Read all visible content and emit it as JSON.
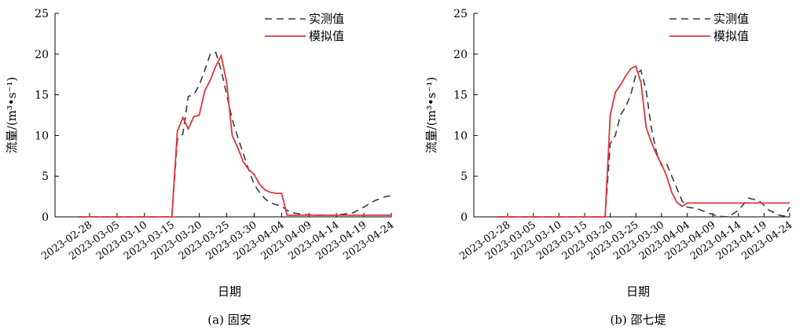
{
  "colors": {
    "observed": "#3a3a3a",
    "simulated": "#e0343a"
  },
  "chart_data": [
    {
      "type": "line",
      "caption": "(a) 固安",
      "xlabel": "日期",
      "ylabel": "流量/(m³•s⁻¹)",
      "ylim": [
        0,
        25
      ],
      "yticks": [
        0,
        5,
        10,
        15,
        20,
        25
      ],
      "xticks": [
        "2023-02-28",
        "2023-03-05",
        "2023-03-10",
        "2023-03-15",
        "2023-03-20",
        "2023-03-25",
        "2023-03-30",
        "2023-04-04",
        "2023-04-09",
        "2023-04-14",
        "2023-04-19",
        "2023-04-24"
      ],
      "x_start": "2023-02-26",
      "x_end": "2023-04-24",
      "legend": {
        "position": "top-right",
        "entries": [
          "实测值",
          "模拟值"
        ]
      },
      "series": [
        {
          "name": "实测值",
          "style": "dashed",
          "x": [
            "2023-02-26",
            "2023-03-15",
            "2023-03-16",
            "2023-03-17",
            "2023-03-18",
            "2023-03-19",
            "2023-03-20",
            "2023-03-21",
            "2023-03-22",
            "2023-03-23",
            "2023-03-24",
            "2023-03-25",
            "2023-03-26",
            "2023-03-27",
            "2023-03-28",
            "2023-03-29",
            "2023-03-30",
            "2023-03-31",
            "2023-04-01",
            "2023-04-02",
            "2023-04-03",
            "2023-04-04",
            "2023-04-05",
            "2023-04-06",
            "2023-04-08",
            "2023-04-10",
            "2023-04-14",
            "2023-04-17",
            "2023-04-19",
            "2023-04-21",
            "2023-04-23",
            "2023-04-24"
          ],
          "y": [
            0,
            0,
            9.5,
            10.2,
            14.8,
            15,
            16.2,
            18,
            20,
            20.2,
            18,
            15,
            12,
            9.8,
            7.8,
            5.8,
            4,
            3,
            2.2,
            1.7,
            1.5,
            1.3,
            0.8,
            0.5,
            0.3,
            0.2,
            0.2,
            0.5,
            1.2,
            2,
            2.5,
            2.6
          ]
        },
        {
          "name": "模拟值",
          "style": "solid",
          "x": [
            "2023-02-26",
            "2023-03-15",
            "2023-03-16",
            "2023-03-17",
            "2023-03-18",
            "2023-03-19",
            "2023-03-20",
            "2023-03-21",
            "2023-03-22",
            "2023-03-23",
            "2023-03-24",
            "2023-03-25",
            "2023-03-26",
            "2023-03-27",
            "2023-03-28",
            "2023-03-29",
            "2023-03-30",
            "2023-03-31",
            "2023-04-01",
            "2023-04-02",
            "2023-04-03",
            "2023-04-04",
            "2023-04-05",
            "2023-04-24"
          ],
          "y": [
            0,
            0,
            10.5,
            12.2,
            10.8,
            12.3,
            12.5,
            15.5,
            16.8,
            18.5,
            19.8,
            16.5,
            10,
            8.5,
            6.8,
            5.8,
            5.2,
            4,
            3.3,
            3,
            2.9,
            2.9,
            0.2,
            0.2
          ]
        }
      ]
    },
    {
      "type": "line",
      "caption": "(b) 邵七堤",
      "xlabel": "日期",
      "ylabel": "流量/(m³•s⁻¹)",
      "ylim": [
        0,
        25
      ],
      "yticks": [
        0,
        5,
        10,
        15,
        20,
        25
      ],
      "xticks": [
        "2023-02-28",
        "2023-03-05",
        "2023-03-10",
        "2023-03-15",
        "2023-03-20",
        "2023-03-25",
        "2023-03-30",
        "2023-04-04",
        "2023-04-09",
        "2023-04-14",
        "2023-04-19",
        "2023-04-24"
      ],
      "x_start": "2023-02-26",
      "x_end": "2023-04-24",
      "legend": {
        "position": "top-right",
        "entries": [
          "实测值",
          "模拟值"
        ]
      },
      "series": [
        {
          "name": "实测值",
          "style": "dashed",
          "x": [
            "2023-02-26",
            "2023-03-19",
            "2023-03-20",
            "2023-03-21",
            "2023-03-22",
            "2023-03-23",
            "2023-03-24",
            "2023-03-25",
            "2023-03-26",
            "2023-03-27",
            "2023-03-28",
            "2023-03-29",
            "2023-03-30",
            "2023-03-31",
            "2023-04-01",
            "2023-04-02",
            "2023-04-03",
            "2023-04-04",
            "2023-04-05",
            "2023-04-06",
            "2023-04-08",
            "2023-04-10",
            "2023-04-12",
            "2023-04-14",
            "2023-04-16",
            "2023-04-18",
            "2023-04-20",
            "2023-04-22",
            "2023-04-23",
            "2023-04-24"
          ],
          "y": [
            0,
            0,
            9,
            10,
            12.5,
            13.5,
            15,
            17.5,
            18,
            15.5,
            11,
            8,
            6.3,
            6.5,
            5,
            3.5,
            2,
            1.2,
            1.1,
            1,
            0.5,
            0.1,
            0,
            0.8,
            2.3,
            2,
            0.8,
            0.2,
            0.1,
            1.2
          ]
        },
        {
          "name": "模拟值",
          "style": "solid",
          "x": [
            "2023-02-26",
            "2023-03-19",
            "2023-03-20",
            "2023-03-21",
            "2023-03-22",
            "2023-03-23",
            "2023-03-24",
            "2023-03-25",
            "2023-03-26",
            "2023-03-27",
            "2023-03-28",
            "2023-03-29",
            "2023-03-30",
            "2023-03-31",
            "2023-04-01",
            "2023-04-02",
            "2023-04-03",
            "2023-04-04",
            "2023-04-05",
            "2023-04-24"
          ],
          "y": [
            0,
            0,
            12.5,
            15.3,
            16.2,
            17.3,
            18.2,
            18.5,
            16.5,
            11,
            9.2,
            7.7,
            6.5,
            5,
            3,
            1.8,
            1.3,
            1.7,
            1.7,
            1.7
          ]
        }
      ]
    }
  ]
}
